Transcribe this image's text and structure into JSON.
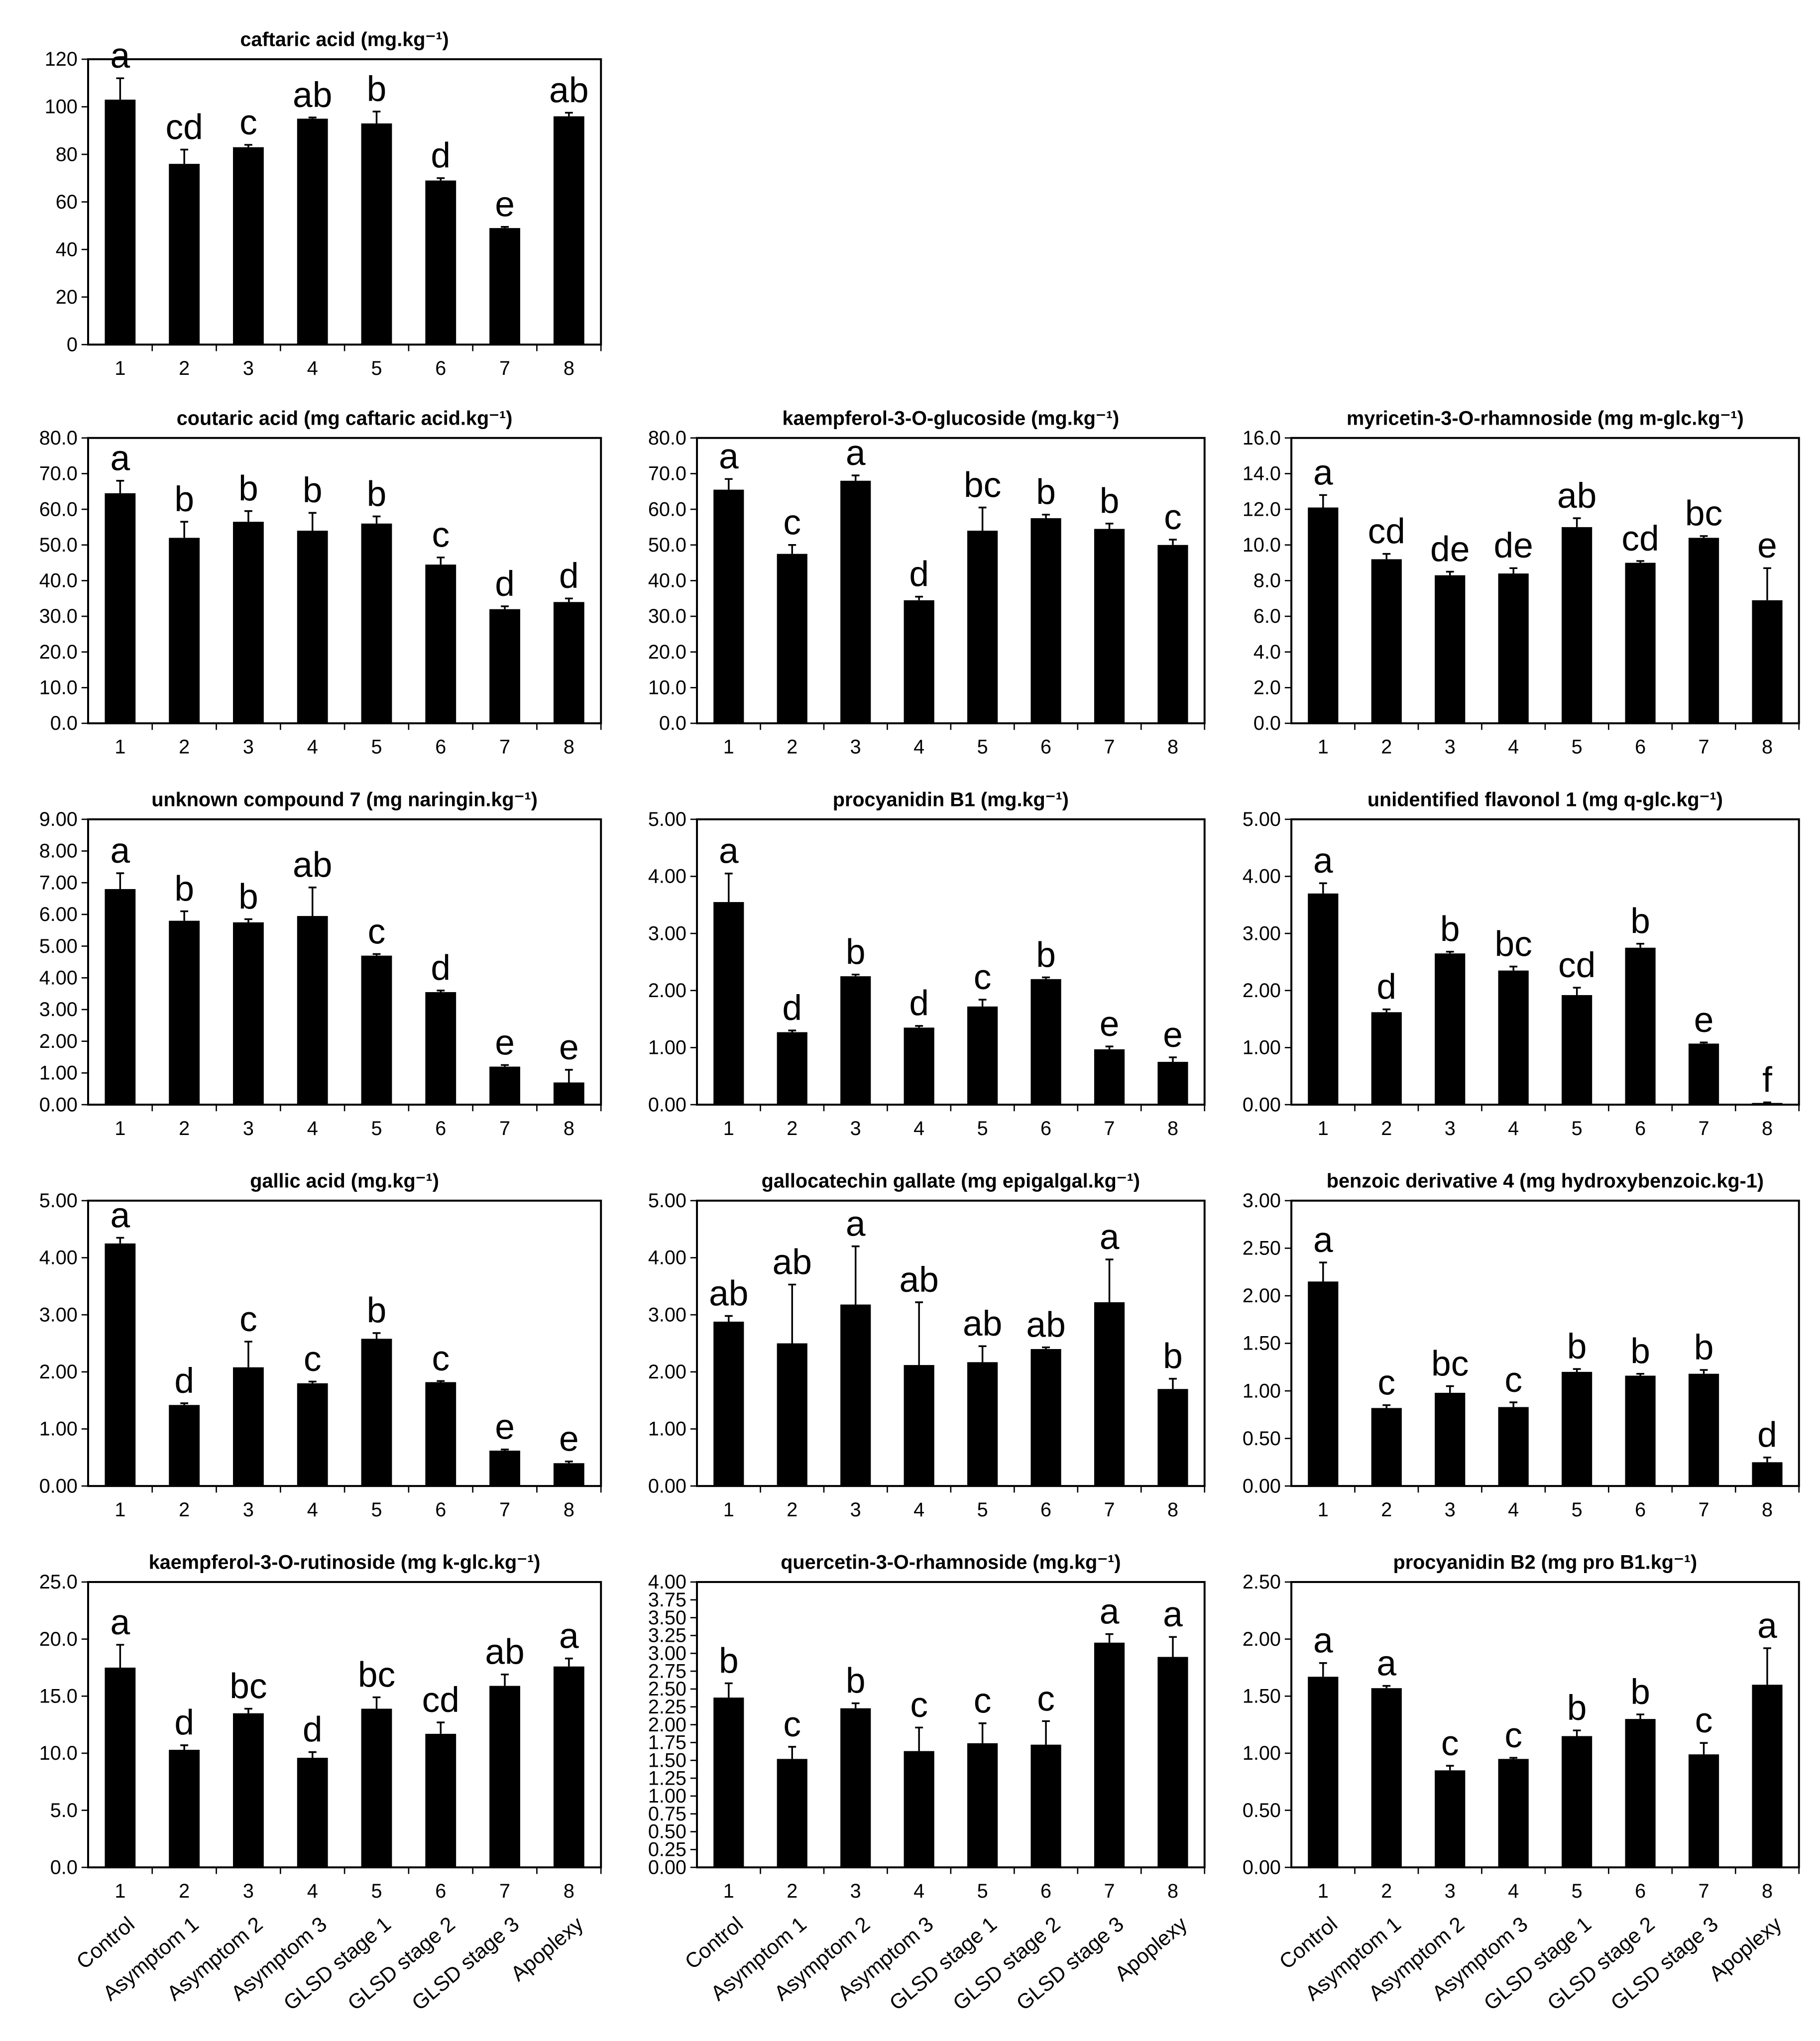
{
  "chart_data": [
    {
      "type": "bar",
      "title": "caftaric acid (mg.kg⁻¹)",
      "color": "#000000",
      "categories": [
        "1",
        "2",
        "3",
        "4",
        "5",
        "6",
        "7",
        "8"
      ],
      "values": [
        103,
        76,
        83,
        95,
        93,
        69,
        49,
        96
      ],
      "errors": [
        9,
        6,
        1,
        0.5,
        5,
        1,
        0.5,
        1.5
      ],
      "letters": [
        "a",
        "cd",
        "c",
        "ab",
        "b",
        "d",
        "e",
        "ab"
      ],
      "ylim": [
        0,
        120
      ],
      "yticks": [
        0,
        20,
        40,
        60,
        80,
        100,
        120
      ]
    },
    {
      "type": "bar",
      "title": "coutaric acid (mg caftaric acid.kg⁻¹)",
      "color": "#000000",
      "categories": [
        "1",
        "2",
        "3",
        "4",
        "5",
        "6",
        "7",
        "8"
      ],
      "values": [
        64.5,
        52,
        56.5,
        54,
        56,
        44.5,
        32,
        34
      ],
      "errors": [
        3.5,
        4.5,
        3,
        5,
        2,
        2,
        0.8,
        1
      ],
      "letters": [
        "a",
        "b",
        "b",
        "b",
        "b",
        "c",
        "d",
        "d"
      ],
      "ylim": [
        0,
        80
      ],
      "yticks": [
        {
          "value": 0,
          "label": "0.0"
        },
        {
          "value": 10,
          "label": "10.0"
        },
        {
          "value": 20,
          "label": "20.0"
        },
        {
          "value": 30,
          "label": "30.0"
        },
        {
          "value": 40,
          "label": "40.0"
        },
        {
          "value": 50,
          "label": "50.0"
        },
        {
          "value": 60,
          "label": "60.0"
        },
        {
          "value": 70,
          "label": "70.0"
        },
        {
          "value": 80,
          "label": "80.0"
        }
      ]
    },
    {
      "type": "bar",
      "title": "kaempferol-3-O-glucoside (mg.kg⁻¹)",
      "color": "#000000",
      "categories": [
        "1",
        "2",
        "3",
        "4",
        "5",
        "6",
        "7",
        "8"
      ],
      "values": [
        65.5,
        47.5,
        68,
        34.5,
        54,
        57.5,
        54.5,
        50
      ],
      "errors": [
        3,
        2.5,
        1.5,
        1,
        6.5,
        1,
        1.5,
        1.5
      ],
      "letters": [
        "a",
        "c",
        "a",
        "d",
        "bc",
        "b",
        "b",
        "c"
      ],
      "ylim": [
        0,
        80
      ],
      "yticks": [
        {
          "value": 0,
          "label": "0.0"
        },
        {
          "value": 10,
          "label": "10.0"
        },
        {
          "value": 20,
          "label": "20.0"
        },
        {
          "value": 30,
          "label": "30.0"
        },
        {
          "value": 40,
          "label": "40.0"
        },
        {
          "value": 50,
          "label": "50.0"
        },
        {
          "value": 60,
          "label": "60.0"
        },
        {
          "value": 70,
          "label": "70.0"
        },
        {
          "value": 80,
          "label": "80.0"
        }
      ]
    },
    {
      "type": "bar",
      "title": "myricetin-3-O-rhamnoside (mg m-glc.kg⁻¹)",
      "color": "#000000",
      "categories": [
        "1",
        "2",
        "3",
        "4",
        "5",
        "6",
        "7",
        "8"
      ],
      "values": [
        12.1,
        9.2,
        8.3,
        8.4,
        11,
        9,
        10.4,
        6.9
      ],
      "errors": [
        0.7,
        0.3,
        0.2,
        0.3,
        0.5,
        0.1,
        0.1,
        1.8
      ],
      "letters": [
        "a",
        "cd",
        "de",
        "de",
        "ab",
        "cd",
        "bc",
        "e"
      ],
      "ylim": [
        0,
        16
      ],
      "yticks": [
        {
          "value": 0,
          "label": "0.0"
        },
        {
          "value": 2,
          "label": "2.0"
        },
        {
          "value": 4,
          "label": "4.0"
        },
        {
          "value": 6,
          "label": "6.0"
        },
        {
          "value": 8,
          "label": "8.0"
        },
        {
          "value": 10,
          "label": "10.0"
        },
        {
          "value": 12,
          "label": "12.0"
        },
        {
          "value": 14,
          "label": "14.0"
        },
        {
          "value": 16,
          "label": "16.0"
        }
      ]
    },
    {
      "type": "bar",
      "title": "unknown compound 7 (mg naringin.kg⁻¹)",
      "color": "#000000",
      "categories": [
        "1",
        "2",
        "3",
        "4",
        "5",
        "6",
        "7",
        "8"
      ],
      "values": [
        6.8,
        5.8,
        5.75,
        5.95,
        4.7,
        3.55,
        1.2,
        0.7
      ],
      "errors": [
        0.5,
        0.3,
        0.1,
        0.9,
        0.05,
        0.05,
        0.05,
        0.4
      ],
      "letters": [
        "a",
        "b",
        "b",
        "ab",
        "c",
        "d",
        "e",
        "e"
      ],
      "ylim": [
        0,
        9
      ],
      "yticks": [
        {
          "value": 0,
          "label": "0.00"
        },
        {
          "value": 1,
          "label": "1.00"
        },
        {
          "value": 2,
          "label": "2.00"
        },
        {
          "value": 3,
          "label": "3.00"
        },
        {
          "value": 4,
          "label": "4.00"
        },
        {
          "value": 5,
          "label": "5.00"
        },
        {
          "value": 6,
          "label": "6.00"
        },
        {
          "value": 7,
          "label": "7.00"
        },
        {
          "value": 8,
          "label": "8.00"
        },
        {
          "value": 9,
          "label": "9.00"
        }
      ]
    },
    {
      "type": "bar",
      "title": "procyanidin B1 (mg.kg⁻¹)",
      "color": "#000000",
      "categories": [
        "1",
        "2",
        "3",
        "4",
        "5",
        "6",
        "7",
        "8"
      ],
      "values": [
        3.55,
        1.27,
        2.25,
        1.35,
        1.72,
        2.2,
        0.97,
        0.75
      ],
      "errors": [
        0.5,
        0.03,
        0.03,
        0.03,
        0.12,
        0.03,
        0.05,
        0.08
      ],
      "letters": [
        "a",
        "d",
        "b",
        "d",
        "c",
        "b",
        "e",
        "e"
      ],
      "ylim": [
        0,
        5
      ],
      "yticks": [
        {
          "value": 0,
          "label": "0.00"
        },
        {
          "value": 1,
          "label": "1.00"
        },
        {
          "value": 2,
          "label": "2.00"
        },
        {
          "value": 3,
          "label": "3.00"
        },
        {
          "value": 4,
          "label": "4.00"
        },
        {
          "value": 5,
          "label": "5.00"
        }
      ]
    },
    {
      "type": "bar",
      "title": "unidentified flavonol 1 (mg q-glc.kg⁻¹)",
      "color": "#000000",
      "categories": [
        "1",
        "2",
        "3",
        "4",
        "5",
        "6",
        "7",
        "8"
      ],
      "values": [
        3.7,
        1.62,
        2.65,
        2.35,
        1.92,
        2.75,
        1.07,
        0.03
      ],
      "errors": [
        0.18,
        0.05,
        0.03,
        0.07,
        0.13,
        0.07,
        0.02,
        0.01
      ],
      "letters": [
        "a",
        "d",
        "b",
        "bc",
        "cd",
        "b",
        "e",
        "f"
      ],
      "ylim": [
        0,
        5
      ],
      "yticks": [
        {
          "value": 0,
          "label": "0.00"
        },
        {
          "value": 1,
          "label": "1.00"
        },
        {
          "value": 2,
          "label": "2.00"
        },
        {
          "value": 3,
          "label": "3.00"
        },
        {
          "value": 4,
          "label": "4.00"
        },
        {
          "value": 5,
          "label": "5.00"
        }
      ]
    },
    {
      "type": "bar",
      "title": "gallic acid (mg.kg⁻¹)",
      "color": "#000000",
      "categories": [
        "1",
        "2",
        "3",
        "4",
        "5",
        "6",
        "7",
        "8"
      ],
      "values": [
        4.25,
        1.42,
        2.08,
        1.8,
        2.58,
        1.82,
        0.62,
        0.4
      ],
      "errors": [
        0.1,
        0.03,
        0.45,
        0.03,
        0.1,
        0.02,
        0.02,
        0.03
      ],
      "letters": [
        "a",
        "d",
        "c",
        "c",
        "b",
        "c",
        "e",
        "e"
      ],
      "ylim": [
        0,
        5
      ],
      "yticks": [
        {
          "value": 0,
          "label": "0.00"
        },
        {
          "value": 1,
          "label": "1.00"
        },
        {
          "value": 2,
          "label": "2.00"
        },
        {
          "value": 3,
          "label": "3.00"
        },
        {
          "value": 4,
          "label": "4.00"
        },
        {
          "value": 5,
          "label": "5.00"
        }
      ]
    },
    {
      "type": "bar",
      "title": "gallocatechin gallate (mg epigalgal.kg⁻¹)",
      "color": "#000000",
      "categories": [
        "1",
        "2",
        "3",
        "4",
        "5",
        "6",
        "7",
        "8"
      ],
      "values": [
        2.88,
        2.5,
        3.18,
        2.12,
        2.17,
        2.4,
        3.22,
        1.7
      ],
      "errors": [
        0.1,
        1.03,
        1.02,
        1.1,
        0.28,
        0.03,
        0.75,
        0.18
      ],
      "letters": [
        "ab",
        "ab",
        "a",
        "ab",
        "ab",
        "ab",
        "a",
        "b"
      ],
      "ylim": [
        0,
        5
      ],
      "yticks": [
        {
          "value": 0,
          "label": "0.00"
        },
        {
          "value": 1,
          "label": "1.00"
        },
        {
          "value": 2,
          "label": "2.00"
        },
        {
          "value": 3,
          "label": "3.00"
        },
        {
          "value": 4,
          "label": "4.00"
        },
        {
          "value": 5,
          "label": "5.00"
        }
      ]
    },
    {
      "type": "bar",
      "title": "benzoic derivative 4 (mg hydroxybenzoic.kg-1)",
      "color": "#000000",
      "categories": [
        "1",
        "2",
        "3",
        "4",
        "5",
        "6",
        "7",
        "8"
      ],
      "values": [
        2.15,
        0.82,
        0.98,
        0.83,
        1.2,
        1.16,
        1.18,
        0.25
      ],
      "errors": [
        0.2,
        0.03,
        0.07,
        0.05,
        0.03,
        0.02,
        0.04,
        0.05
      ],
      "letters": [
        "a",
        "c",
        "bc",
        "c",
        "b",
        "b",
        "b",
        "d"
      ],
      "ylim": [
        0,
        3
      ],
      "yticks": [
        {
          "value": 0,
          "label": "0.00"
        },
        {
          "value": 0.5,
          "label": "0.50"
        },
        {
          "value": 1,
          "label": "1.00"
        },
        {
          "value": 1.5,
          "label": "1.50"
        },
        {
          "value": 2,
          "label": "2.00"
        },
        {
          "value": 2.5,
          "label": "2.50"
        },
        {
          "value": 3,
          "label": "3.00"
        }
      ]
    },
    {
      "type": "bar",
      "title": "kaempferol-3-O-rutinoside (mg k-glc.kg⁻¹)",
      "color": "#000000",
      "categories": [
        "1",
        "2",
        "3",
        "4",
        "5",
        "6",
        "7",
        "8"
      ],
      "category_labels": [
        "Control",
        "Asymptom 1",
        "Asymptom 2",
        "Asymptom 3",
        "GLSD stage 1",
        "GLSD stage 2",
        "GLSD stage 3",
        "Apoplexy"
      ],
      "values": [
        17.5,
        10.3,
        13.5,
        9.6,
        13.9,
        11.7,
        15.9,
        17.6
      ],
      "errors": [
        2,
        0.4,
        0.4,
        0.5,
        1,
        1,
        1,
        0.7
      ],
      "letters": [
        "a",
        "d",
        "bc",
        "d",
        "bc",
        "cd",
        "ab",
        "a"
      ],
      "ylim": [
        0,
        25
      ],
      "yticks": [
        {
          "value": 0,
          "label": "0.0"
        },
        {
          "value": 5,
          "label": "5.0"
        },
        {
          "value": 10,
          "label": "10.0"
        },
        {
          "value": 15,
          "label": "15.0"
        },
        {
          "value": 20,
          "label": "20.0"
        },
        {
          "value": 25,
          "label": "25.0"
        }
      ]
    },
    {
      "type": "bar",
      "title": "quercetin-3-O-rhamnoside (mg.kg⁻¹)",
      "color": "#000000",
      "categories": [
        "1",
        "2",
        "3",
        "4",
        "5",
        "6",
        "7",
        "8"
      ],
      "category_labels": [
        "Control",
        "Asymptom 1",
        "Asymptom 2",
        "Asymptom 3",
        "GLSD stage 1",
        "GLSD stage 2",
        "GLSD stage 3",
        "Apoplexy"
      ],
      "values": [
        2.38,
        1.52,
        2.23,
        1.63,
        1.74,
        1.72,
        3.15,
        2.95
      ],
      "errors": [
        0.2,
        0.17,
        0.07,
        0.33,
        0.28,
        0.33,
        0.12,
        0.28
      ],
      "letters": [
        "b",
        "c",
        "b",
        "c",
        "c",
        "c",
        "a",
        "a"
      ],
      "ylim": [
        0,
        4
      ],
      "yticks": [
        {
          "value": 0,
          "label": "0.00"
        },
        {
          "value": 0.25,
          "label": "0.25"
        },
        {
          "value": 0.5,
          "label": "0.50"
        },
        {
          "value": 0.75,
          "label": "0.75"
        },
        {
          "value": 1,
          "label": "1.00"
        },
        {
          "value": 1.25,
          "label": "1.25"
        },
        {
          "value": 1.5,
          "label": "1.50"
        },
        {
          "value": 1.75,
          "label": "1.75"
        },
        {
          "value": 2,
          "label": "2.00"
        },
        {
          "value": 2.25,
          "label": "2.25"
        },
        {
          "value": 2.5,
          "label": "2.50"
        },
        {
          "value": 2.75,
          "label": "2.75"
        },
        {
          "value": 3,
          "label": "3.00"
        },
        {
          "value": 3.25,
          "label": "3.25"
        },
        {
          "value": 3.5,
          "label": "3.50"
        },
        {
          "value": 3.75,
          "label": "3.75"
        },
        {
          "value": 4,
          "label": "4.00"
        }
      ]
    },
    {
      "type": "bar",
      "title": "procyanidin B2 (mg pro B1.kg⁻¹)",
      "color": "#000000",
      "categories": [
        "1",
        "2",
        "3",
        "4",
        "5",
        "6",
        "7",
        "8"
      ],
      "category_labels": [
        "Control",
        "Asymptom 1",
        "Asymptom 2",
        "Asymptom 3",
        "GLSD stage 1",
        "GLSD stage 2",
        "GLSD stage 3",
        "Apoplexy"
      ],
      "values": [
        1.67,
        1.57,
        0.85,
        0.95,
        1.15,
        1.3,
        0.99,
        1.6
      ],
      "errors": [
        0.12,
        0.02,
        0.04,
        0.01,
        0.05,
        0.04,
        0.1,
        0.32
      ],
      "letters": [
        "a",
        "a",
        "c",
        "c",
        "b",
        "b",
        "c",
        "a"
      ],
      "ylim": [
        0,
        2.5
      ],
      "yticks": [
        {
          "value": 0,
          "label": "0.00"
        },
        {
          "value": 0.5,
          "label": "0.50"
        },
        {
          "value": 1,
          "label": "1.00"
        },
        {
          "value": 1.5,
          "label": "1.50"
        },
        {
          "value": 2,
          "label": "2.00"
        },
        {
          "value": 2.5,
          "label": "2.50"
        }
      ]
    }
  ]
}
